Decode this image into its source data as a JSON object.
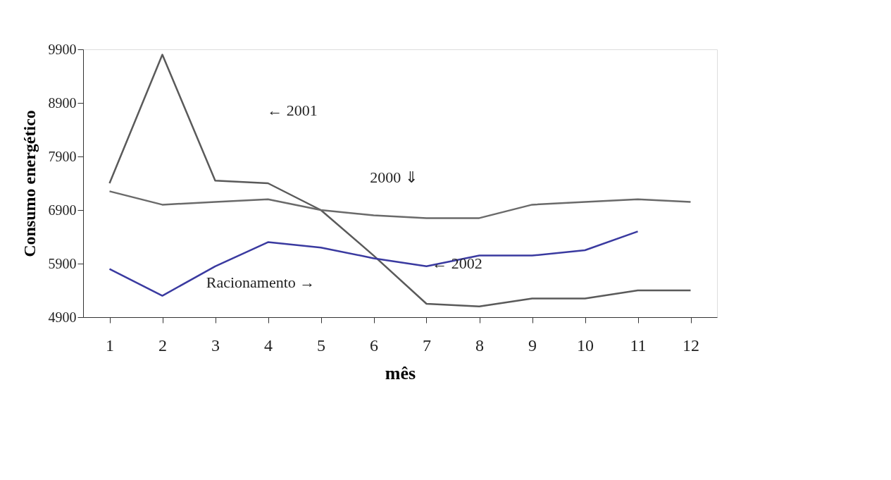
{
  "chart_data": {
    "type": "line",
    "xlabel": "mês",
    "ylabel": "Consumo energético",
    "x": [
      1,
      2,
      3,
      4,
      5,
      6,
      7,
      8,
      9,
      10,
      11,
      12
    ],
    "xlim": [
      0.5,
      12.5
    ],
    "xticks": [
      1,
      2,
      3,
      4,
      5,
      6,
      7,
      8,
      9,
      10,
      11,
      12
    ],
    "ylim": [
      4900,
      9900
    ],
    "yticks": [
      4900,
      5900,
      6900,
      7900,
      8900,
      9900
    ],
    "grid": false,
    "legend": false,
    "marker": "none",
    "line_style": "solid",
    "series": [
      {
        "color": "#5a5a5a",
        "values": [
          7400,
          9800,
          7450,
          7400,
          6900,
          6050,
          5150,
          5100,
          5250,
          5250,
          5400,
          5400
        ]
      },
      {
        "color": "#6a6a6a",
        "values": [
          7250,
          7000,
          7050,
          7100,
          6900,
          6800,
          6750,
          6750,
          7000,
          7050,
          7100,
          7050
        ]
      },
      {
        "color": "#3a3aa0",
        "values": [
          5800,
          5300,
          5850,
          6300,
          6200,
          6000,
          5850,
          6050,
          6050,
          6150,
          6500,
          null
        ]
      }
    ],
    "annotations": [
      "← 2001",
      "2000 ⇓",
      "← 2002",
      "Racionamento →"
    ]
  }
}
